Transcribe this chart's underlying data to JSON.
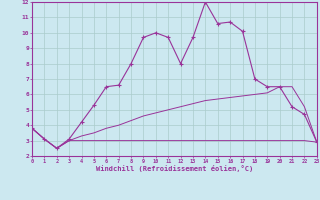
{
  "x": [
    0,
    1,
    2,
    3,
    4,
    5,
    6,
    7,
    8,
    9,
    10,
    11,
    12,
    13,
    14,
    15,
    16,
    17,
    18,
    19,
    20,
    21,
    22,
    23
  ],
  "line1": [
    3.8,
    3.1,
    2.5,
    3.1,
    4.2,
    5.3,
    6.5,
    6.6,
    8.0,
    9.7,
    10.0,
    9.7,
    8.0,
    9.7,
    12.0,
    10.6,
    10.7,
    10.1,
    7.0,
    6.5,
    6.5,
    5.2,
    4.7,
    2.9
  ],
  "line2": [
    3.8,
    3.1,
    2.5,
    3.0,
    3.0,
    3.0,
    3.0,
    3.0,
    3.0,
    3.0,
    3.0,
    3.0,
    3.0,
    3.0,
    3.0,
    3.0,
    3.0,
    3.0,
    3.0,
    3.0,
    3.0,
    3.0,
    3.0,
    2.9
  ],
  "line3": [
    3.8,
    3.1,
    2.5,
    3.0,
    3.3,
    3.5,
    3.8,
    4.0,
    4.3,
    4.6,
    4.8,
    5.0,
    5.2,
    5.4,
    5.6,
    5.7,
    5.8,
    5.9,
    6.0,
    6.1,
    6.5,
    6.5,
    5.2,
    2.9
  ],
  "color": "#993399",
  "bg_color": "#cce8f0",
  "grid_color": "#aacccc",
  "xlabel": "Windchill (Refroidissement éolien,°C)",
  "xlim": [
    0,
    23
  ],
  "ylim": [
    2,
    12
  ],
  "yticks": [
    2,
    3,
    4,
    5,
    6,
    7,
    8,
    9,
    10,
    11,
    12
  ],
  "xticks": [
    0,
    1,
    2,
    3,
    4,
    5,
    6,
    7,
    8,
    9,
    10,
    11,
    12,
    13,
    14,
    15,
    16,
    17,
    18,
    19,
    20,
    21,
    22,
    23
  ]
}
